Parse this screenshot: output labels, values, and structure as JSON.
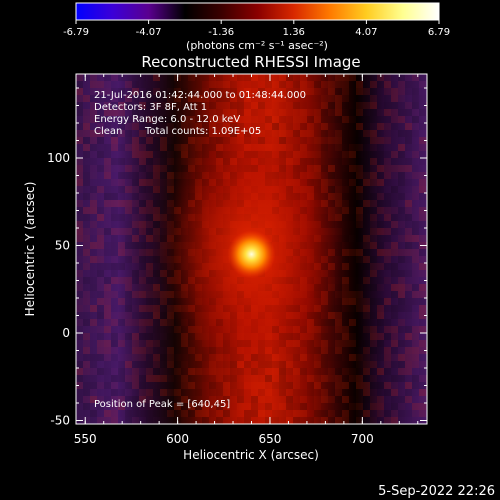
{
  "colorbar": {
    "ticks": [
      "-6.79",
      "-4.07",
      "-1.36",
      "1.36",
      "4.07",
      "6.79"
    ],
    "unit_label": "(photons cm⁻² s⁻¹ asec⁻²)",
    "colors": [
      "#0000ff",
      "#3b00d8",
      "#5a0090",
      "#000000",
      "#3a0000",
      "#8a0000",
      "#d82800",
      "#ff7a00",
      "#ffcc20",
      "#ffff90",
      "#ffffff"
    ]
  },
  "chart_data": {
    "type": "heatmap",
    "title": "Reconstructed RHESSI Image",
    "xlabel": "Heliocentric X (arcsec)",
    "ylabel": "Heliocentric Y (arcsec)",
    "xlim": [
      545,
      735
    ],
    "ylim": [
      -52,
      148
    ],
    "xticks": [
      550,
      600,
      650,
      700
    ],
    "yticks": [
      -50,
      0,
      50,
      100
    ],
    "peak": [
      640,
      45
    ],
    "annotations": {
      "date_range": "21-Jul-2016 01:42:44.000 to 01:48:44.000",
      "detectors": "Detectors: 3F 8F, Att 1",
      "energy": "Energy Range: 6.0 - 12.0 keV",
      "clean": "Clean",
      "total_counts": "Total counts: 1.09E+05",
      "peak_position": "Position of Peak = [640,45]"
    }
  },
  "footer": {
    "timestamp": "5-Sep-2022 22:26"
  }
}
